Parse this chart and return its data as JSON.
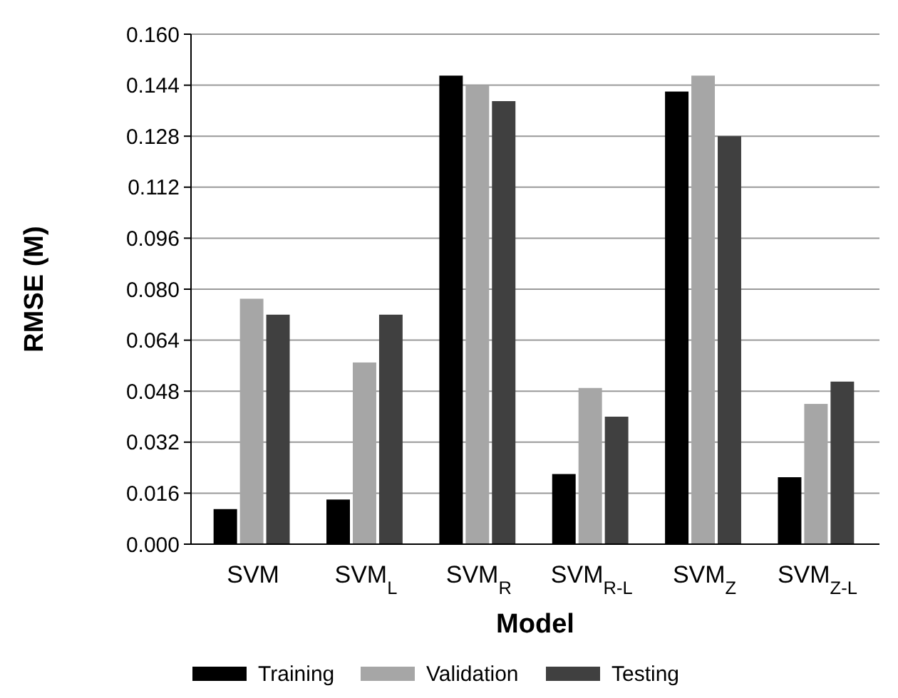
{
  "chart_data": {
    "type": "bar",
    "xlabel": "Model",
    "ylabel": "RMSE (M)",
    "categories": [
      "SVM",
      "SVM$_{L}$",
      "SVM$_{R}$",
      "SVM$_{R-L}$",
      "SVM$_{Z}$",
      "SVM$_{Z-L}$"
    ],
    "series": [
      {
        "name": "Training",
        "color": "#000000",
        "values": [
          0.011,
          0.014,
          0.147,
          0.022,
          0.142,
          0.021
        ]
      },
      {
        "name": "Validation",
        "color": "#a6a6a6",
        "values": [
          0.077,
          0.057,
          0.144,
          0.049,
          0.147,
          0.044
        ]
      },
      {
        "name": "Testing",
        "color": "#404040",
        "values": [
          0.072,
          0.072,
          0.139,
          0.04,
          0.128,
          0.051
        ]
      }
    ],
    "ylim": [
      0,
      0.16
    ],
    "yticks": [
      {
        "value": 0,
        "label": "0.000"
      },
      {
        "value": 0.016,
        "label": "0.016"
      },
      {
        "value": 0.032,
        "label": "0.032"
      },
      {
        "value": 0.048,
        "label": "0.048"
      },
      {
        "value": 0.064,
        "label": "0.064"
      },
      {
        "value": 0.08,
        "label": "0.080"
      },
      {
        "value": 0.096,
        "label": "0.096"
      },
      {
        "value": 0.112,
        "label": "0.112"
      },
      {
        "value": 0.128,
        "label": "0.128"
      },
      {
        "value": 0.144,
        "label": "0.144"
      },
      {
        "value": 0.16,
        "label": "0.160"
      }
    ],
    "grid": "y",
    "legend": "bottom"
  }
}
